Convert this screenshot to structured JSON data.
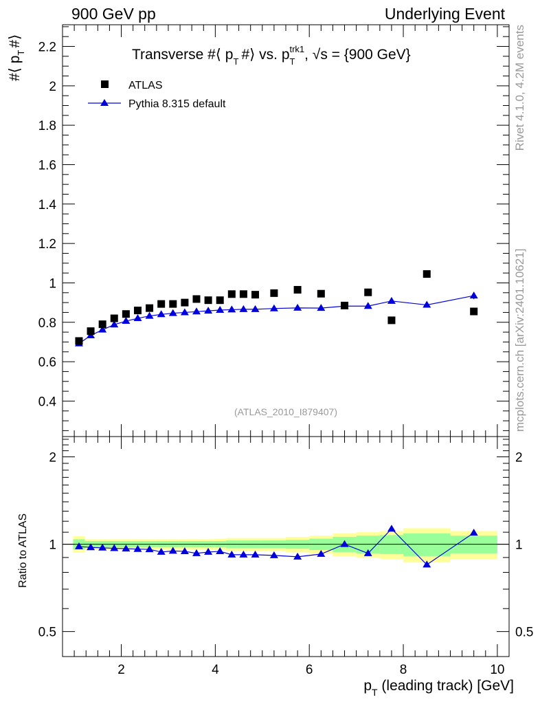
{
  "header": {
    "left": "900 GeV pp",
    "right": "Underlying Event"
  },
  "side_labels": {
    "rivet": "Rivet 4.1.0,  4.2M events",
    "mcplots": "mcplots.cern.ch [arXiv:2401.10621]"
  },
  "analysis_id": "(ATLAS_2010_I879407)",
  "colors": {
    "data": "#000000",
    "mc": "#0000dd",
    "band_inner": "#99ff99",
    "band_outer": "#ffff99",
    "watermark": "#999999"
  },
  "chart_data": [
    {
      "type": "scatter",
      "panel": "main",
      "title": "Transverse #⟨ p_T #⟩ vs. p_T^trk1, √s = {900 GeV}",
      "title_parts": {
        "a": "Transverse #⟨ p",
        "b": "#⟩ vs. p",
        "c": ", ",
        "d": "s = {900 GeV}",
        "sub_t": "T",
        "sup_trk1": "trk1",
        "sub_t2": "T",
        "sqrt": "√"
      },
      "ylabel": "#⟨ p_T #⟩",
      "ylabel_parts": {
        "a": "#⟨ p",
        "sub": "T",
        "b": "#⟩"
      },
      "xlim": [
        0.75,
        10.25
      ],
      "ylim": [
        0.22,
        2.31
      ],
      "yticks": [
        0.4,
        0.6,
        0.8,
        1,
        1.2,
        1.4,
        1.6,
        1.8,
        2,
        2.2
      ],
      "ytick_labels": [
        "0.4",
        "0.6",
        "0.8",
        "1",
        "1.2",
        "1.4",
        "1.6",
        "1.8",
        "2",
        "2.2"
      ],
      "legend_position": "top-left",
      "series": [
        {
          "name": "ATLAS",
          "marker": "square",
          "x": [
            1.1,
            1.35,
            1.6,
            1.85,
            2.1,
            2.35,
            2.6,
            2.85,
            3.1,
            3.35,
            3.6,
            3.85,
            4.1,
            4.35,
            4.6,
            4.85,
            5.25,
            5.75,
            6.25,
            6.75,
            7.25,
            7.75,
            8.5,
            9.5
          ],
          "y": [
            0.705,
            0.755,
            0.79,
            0.82,
            0.842,
            0.86,
            0.872,
            0.893,
            0.893,
            0.9,
            0.918,
            0.912,
            0.912,
            0.943,
            0.943,
            0.94,
            0.948,
            0.965,
            0.945,
            0.885,
            0.952,
            0.81,
            1.045,
            0.855
          ]
        },
        {
          "name": "Pythia 8.315 default",
          "marker": "triangle",
          "x": [
            1.1,
            1.35,
            1.6,
            1.85,
            2.1,
            2.35,
            2.6,
            2.85,
            3.1,
            3.35,
            3.6,
            3.85,
            4.1,
            4.35,
            4.6,
            4.85,
            5.25,
            5.75,
            6.25,
            6.75,
            7.25,
            7.75,
            8.5,
            9.5
          ],
          "y": [
            0.692,
            0.733,
            0.762,
            0.788,
            0.806,
            0.82,
            0.832,
            0.84,
            0.846,
            0.85,
            0.854,
            0.858,
            0.862,
            0.864,
            0.866,
            0.866,
            0.87,
            0.873,
            0.872,
            0.882,
            0.882,
            0.908,
            0.888,
            0.935
          ],
          "yerr": [
            0.004,
            0.004,
            0.004,
            0.004,
            0.004,
            0.004,
            0.004,
            0.004,
            0.004,
            0.004,
            0.004,
            0.004,
            0.004,
            0.004,
            0.004,
            0.004,
            0.005,
            0.006,
            0.007,
            0.008,
            0.009,
            0.012,
            0.012,
            0.018
          ]
        }
      ]
    },
    {
      "type": "scatter",
      "panel": "ratio",
      "xlabel": "p_T (leading track) [GeV]",
      "xlabel_parts": {
        "a": "p",
        "sub": "T",
        "b": " (leading track) [GeV]"
      },
      "ylabel": "Ratio to ATLAS",
      "yscale": "log",
      "xlim": [
        0.75,
        10.25
      ],
      "ylim": [
        0.41,
        2.35
      ],
      "xticks": [
        2,
        4,
        6,
        8,
        10
      ],
      "xtick_labels": [
        "2",
        "4",
        "6",
        "8",
        "10"
      ],
      "yticks": [
        0.5,
        1,
        2
      ],
      "ytick_labels": [
        "0.5",
        "1",
        "2"
      ],
      "band_edges": [
        0.975,
        1.225,
        1.475,
        1.725,
        1.975,
        2.225,
        2.475,
        2.725,
        2.975,
        3.225,
        3.475,
        3.725,
        3.975,
        4.225,
        4.475,
        4.725,
        5.0,
        5.5,
        6.0,
        6.5,
        7.0,
        7.5,
        8.0,
        9.0,
        10.0
      ],
      "band_inner_halfwidth": [
        0.04,
        0.025,
        0.025,
        0.025,
        0.025,
        0.025,
        0.025,
        0.025,
        0.025,
        0.025,
        0.025,
        0.025,
        0.025,
        0.03,
        0.03,
        0.03,
        0.03,
        0.035,
        0.045,
        0.06,
        0.07,
        0.075,
        0.09,
        0.07
      ],
      "band_outer_halfwidth": [
        0.065,
        0.04,
        0.04,
        0.04,
        0.04,
        0.04,
        0.04,
        0.04,
        0.04,
        0.04,
        0.04,
        0.04,
        0.045,
        0.05,
        0.05,
        0.05,
        0.05,
        0.06,
        0.07,
        0.09,
        0.1,
        0.11,
        0.135,
        0.11
      ],
      "series": [
        {
          "name": "Pythia 8.315 default / ATLAS",
          "marker": "triangle",
          "x": [
            1.1,
            1.35,
            1.6,
            1.85,
            2.1,
            2.35,
            2.6,
            2.85,
            3.1,
            3.35,
            3.6,
            3.85,
            4.1,
            4.35,
            4.6,
            4.85,
            5.25,
            5.75,
            6.25,
            6.75,
            7.25,
            7.75,
            8.5,
            9.5
          ],
          "y": [
            0.982,
            0.975,
            0.972,
            0.968,
            0.965,
            0.962,
            0.96,
            0.94,
            0.948,
            0.945,
            0.93,
            0.94,
            0.945,
            0.92,
            0.92,
            0.92,
            0.915,
            0.905,
            0.925,
            1.0,
            0.93,
            1.13,
            0.85,
            1.095
          ]
        }
      ]
    }
  ]
}
